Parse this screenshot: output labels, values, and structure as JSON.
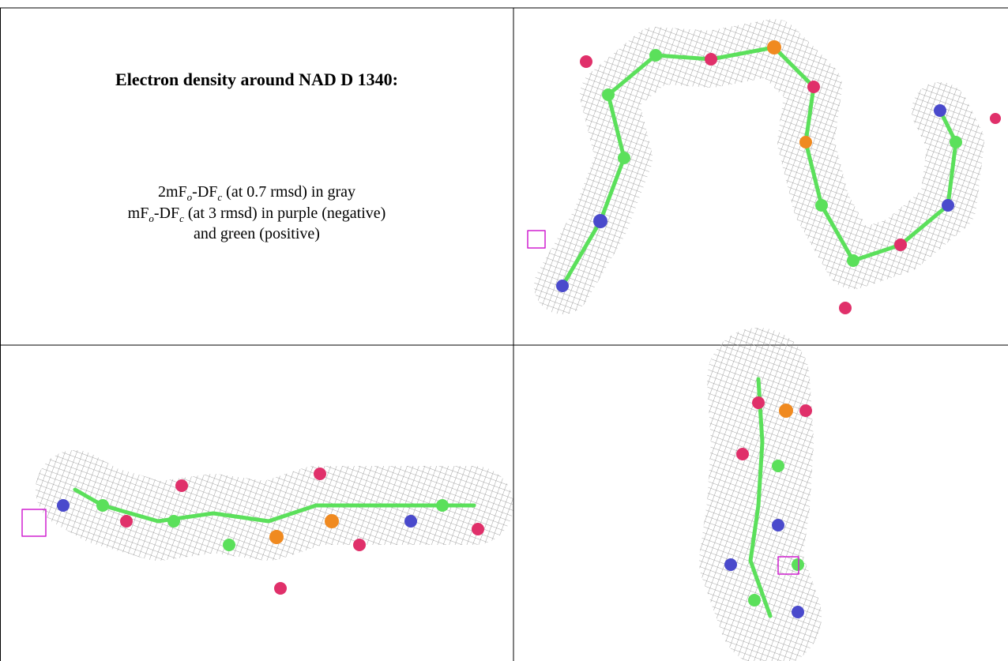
{
  "caption": {
    "title": "Electron density around NAD D 1340:",
    "line1": [
      "2mF",
      "o",
      "-DF",
      "c",
      " (at 0.7 rmsd) in gray"
    ],
    "line2": [
      "mF",
      "o",
      "-DF",
      "c",
      " (at 3 rmsd) in purple (negative)"
    ],
    "line3": "and green (positive)"
  }
}
